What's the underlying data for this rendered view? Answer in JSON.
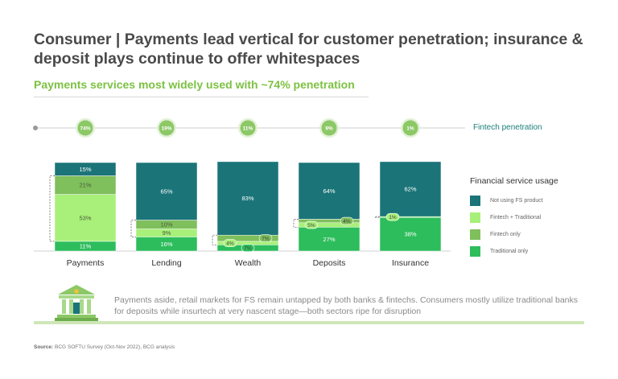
{
  "header": {
    "title": "Consumer | Payments lead vertical for customer penetration; insurance & deposit plays continue to offer whitespaces",
    "subtitle": "Payments services most widely used with ~74% penetration"
  },
  "penetration_label": "Fintech penetration",
  "note": "Payments aside, retail markets for FS remain untapped by both banks & fintechs. Consumers mostly utilize traditional banks for deposits while insurtech at very nascent stage—both sectors ripe for disruption",
  "source": {
    "prefix": "Source:",
    "text": "BCG SOFTU Survey (Oct-Nov 2022), BCG analysis"
  },
  "colors": {
    "not_using": "#1b7478",
    "fintech_traditional": "#a8f07a",
    "fintech_only": "#7fbf5c",
    "traditional_only": "#2dbd5c",
    "penetration_circle": "#8cc866"
  },
  "chart_data": {
    "type": "bar",
    "stacked": true,
    "categories": [
      "Payments",
      "Lending",
      "Wealth",
      "Deposits",
      "Insurance"
    ],
    "penetration": [
      "74%",
      "19%",
      "11%",
      "9%",
      "1%"
    ],
    "legend_title": "Financial service usage",
    "series": [
      {
        "name": "Traditional only",
        "values": [
          11,
          16,
          7,
          27,
          38
        ],
        "labels": [
          "11%",
          "16%",
          "7%",
          "27%",
          "38%"
        ]
      },
      {
        "name": "Fintech + Traditional",
        "values": [
          53,
          9,
          4,
          5,
          1
        ],
        "labels": [
          "53%",
          "9%",
          "4%",
          "5%",
          "1%"
        ]
      },
      {
        "name": "Fintech only",
        "values": [
          21,
          10,
          7,
          4,
          0
        ],
        "labels": [
          "21%",
          "10%",
          "7%",
          "4%",
          ""
        ]
      },
      {
        "name": "Not using FS product",
        "values": [
          15,
          65,
          83,
          64,
          62
        ],
        "labels": [
          "15%",
          "65%",
          "83%",
          "64%",
          "62%"
        ]
      }
    ],
    "legend_order": [
      "Not using FS product",
      "Fintech + Traditional",
      "Fintech only",
      "Traditional only"
    ],
    "ylim": [
      0,
      100
    ]
  }
}
